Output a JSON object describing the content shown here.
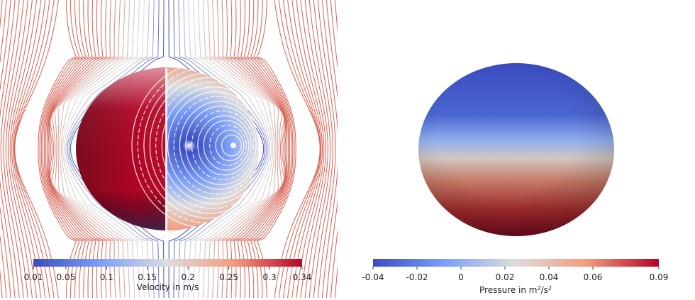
{
  "colors": {
    "cold": "#3b4cc0",
    "mid": "#dddddd",
    "hot": "#b40426",
    "dark_hot": "#7f0a1e",
    "streamline_white": "#ffffff"
  },
  "left_view": {
    "colorbar": {
      "title": "Velocity in m/s",
      "ticks": [
        {
          "value": 0.01,
          "label": "0.01"
        },
        {
          "value": 0.05,
          "label": "0.05"
        },
        {
          "value": 0.1,
          "label": "0.1"
        },
        {
          "value": 0.15,
          "label": "0.15"
        },
        {
          "value": 0.2,
          "label": "0.2"
        },
        {
          "value": 0.25,
          "label": "0.25"
        },
        {
          "value": 0.3,
          "label": "0.3"
        },
        {
          "value": 0.34,
          "label": "0.34"
        }
      ],
      "range": [
        0.01,
        0.34
      ]
    }
  },
  "right_view": {
    "colorbar": {
      "title": "Pressure in m",
      "title_sup": "2",
      "title_mid": "/s",
      "title_sup2": "2",
      "ticks": [
        {
          "value": -0.04,
          "label": "-0.04"
        },
        {
          "value": -0.02,
          "label": "-0.02"
        },
        {
          "value": 0,
          "label": "0"
        },
        {
          "value": 0.02,
          "label": "0.02"
        },
        {
          "value": 0.04,
          "label": "0.04"
        },
        {
          "value": 0.06,
          "label": "0.06"
        },
        {
          "value": 0.09,
          "label": "0.09"
        }
      ],
      "range": [
        -0.04,
        0.09
      ]
    }
  }
}
